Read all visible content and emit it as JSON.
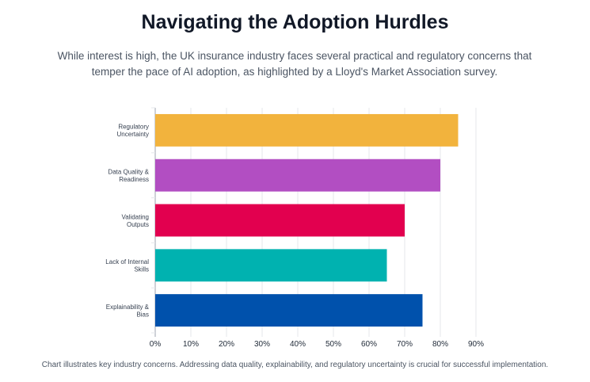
{
  "header": {
    "title": "Navigating the Adoption Hurdles",
    "subtitle": "While interest is high, the UK insurance industry faces several practical and regulatory concerns that temper the pace of AI adoption, as highlighted by a Lloyd's Market Association survey."
  },
  "footer": {
    "note": "Chart illustrates key industry concerns. Addressing data quality, explainability, and regulatory uncertainty is crucial for successful implementation."
  },
  "chart_data": {
    "type": "bar",
    "orientation": "horizontal",
    "categories": [
      [
        "Regulatory",
        "Uncertainty"
      ],
      [
        "Data Quality &",
        "Readiness"
      ],
      [
        "Validating",
        "Outputs"
      ],
      [
        "Lack of Internal",
        "Skills"
      ],
      [
        "Explainability &",
        "Bias"
      ]
    ],
    "values": [
      85,
      80,
      70,
      65,
      75
    ],
    "colors": [
      "#f2b33d",
      "#b24ec2",
      "#e2004f",
      "#00b2b0",
      "#0051ac"
    ],
    "xlim": [
      0,
      90
    ],
    "xticks": [
      0,
      10,
      20,
      30,
      40,
      50,
      60,
      70,
      80,
      90
    ],
    "tick_suffix": "%",
    "grid": true,
    "legend": "none",
    "title": "",
    "xlabel": "",
    "ylabel": ""
  }
}
